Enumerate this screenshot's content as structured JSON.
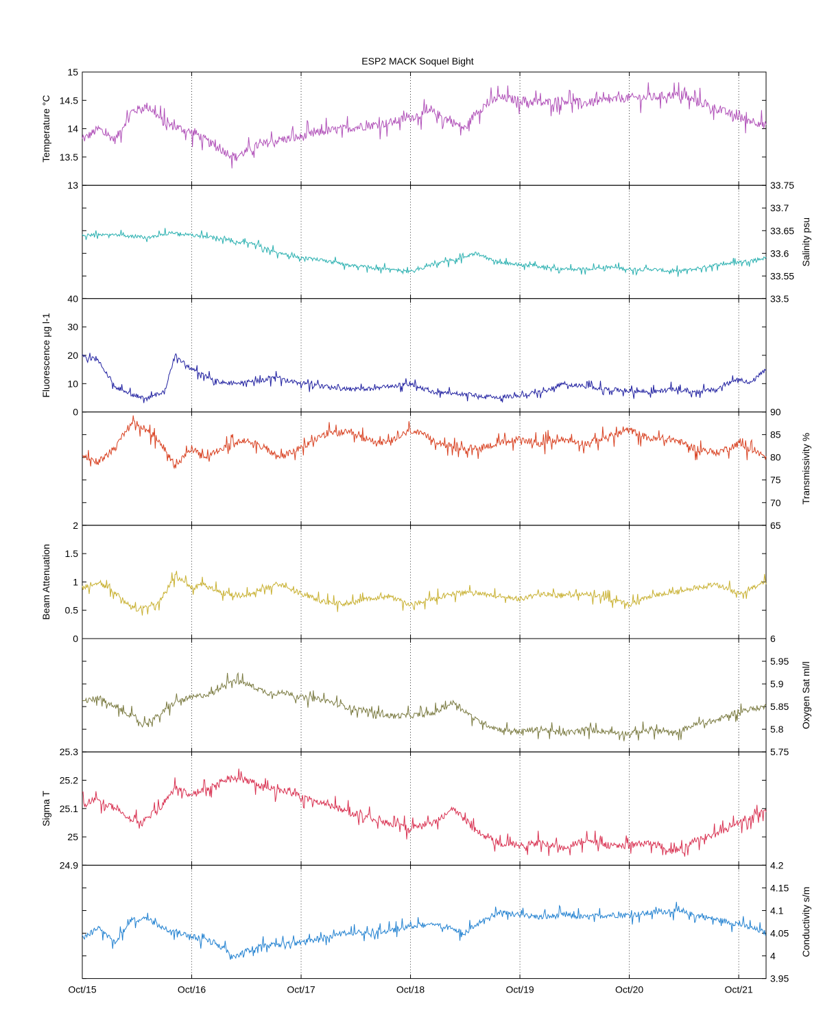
{
  "title": "ESP2 MACK  Soquel Bight",
  "x_axis": {
    "ticks": [
      "Oct/15",
      "Oct/16",
      "Oct/17",
      "Oct/18",
      "Oct/19",
      "Oct/20",
      "Oct/21"
    ],
    "range_days": [
      0,
      6.25
    ]
  },
  "chart_data": [
    {
      "type": "line",
      "ylabel": "Temperature °C",
      "axis_side": "left",
      "color": "#b050b8",
      "ylim": [
        13,
        15
      ],
      "yticks": [
        13,
        13.5,
        14,
        14.5,
        15
      ],
      "series": [
        {
          "x_days": [
            0,
            0.15,
            0.3,
            0.45,
            0.6,
            0.75,
            0.9,
            1.05,
            1.2,
            1.4,
            1.6,
            1.8,
            2.0,
            2.2,
            2.4,
            2.6,
            2.8,
            3.0,
            3.2,
            3.4,
            3.5,
            3.6,
            3.8,
            4.0,
            4.2,
            4.4,
            4.6,
            4.8,
            5.0,
            5.2,
            5.4,
            5.6,
            5.8,
            6.0,
            6.2,
            6.25
          ],
          "values": [
            13.8,
            14.0,
            13.8,
            14.3,
            14.4,
            14.1,
            14.0,
            13.9,
            13.7,
            13.5,
            13.7,
            13.8,
            13.85,
            13.95,
            14.0,
            14.05,
            14.1,
            14.2,
            14.3,
            14.1,
            14.0,
            14.3,
            14.55,
            14.5,
            14.45,
            14.5,
            14.45,
            14.5,
            14.55,
            14.55,
            14.6,
            14.5,
            14.35,
            14.2,
            14.1,
            14.05
          ],
          "noise": 0.25
        }
      ]
    },
    {
      "type": "line",
      "ylabel": "Salinity psu",
      "axis_side": "right",
      "color": "#2ab0b0",
      "ylim": [
        33.5,
        33.75
      ],
      "yticks": [
        33.5,
        33.55,
        33.6,
        33.65,
        33.7,
        33.75
      ],
      "series": [
        {
          "x_days": [
            0,
            0.3,
            0.6,
            0.8,
            1.0,
            1.2,
            1.4,
            1.6,
            1.8,
            2.0,
            2.2,
            2.4,
            2.6,
            2.8,
            3.0,
            3.2,
            3.4,
            3.6,
            3.8,
            4.0,
            4.2,
            4.4,
            4.6,
            4.8,
            5.0,
            5.2,
            5.4,
            5.6,
            5.8,
            6.0,
            6.25
          ],
          "values": [
            33.64,
            33.64,
            33.635,
            33.645,
            33.64,
            33.635,
            33.625,
            33.62,
            33.6,
            33.59,
            33.585,
            33.575,
            33.57,
            33.565,
            33.56,
            33.575,
            33.585,
            33.6,
            33.58,
            33.575,
            33.57,
            33.565,
            33.565,
            33.57,
            33.565,
            33.565,
            33.56,
            33.565,
            33.575,
            33.58,
            33.59
          ],
          "noise": 0.012
        }
      ]
    },
    {
      "type": "line",
      "ylabel": "Fluorescence µg l-1",
      "axis_side": "left",
      "color": "#2020a0",
      "ylim": [
        0,
        40
      ],
      "yticks": [
        0,
        10,
        20,
        30,
        40
      ],
      "series": [
        {
          "x_days": [
            0,
            0.15,
            0.3,
            0.45,
            0.6,
            0.75,
            0.85,
            1.0,
            1.2,
            1.4,
            1.6,
            1.8,
            2.0,
            2.2,
            2.4,
            2.6,
            2.8,
            3.0,
            3.2,
            3.4,
            3.6,
            3.8,
            4.0,
            4.2,
            4.4,
            4.6,
            4.8,
            5.0,
            5.2,
            5.4,
            5.6,
            5.8,
            6.0,
            6.1,
            6.25
          ],
          "values": [
            20,
            18,
            9,
            6,
            5,
            7,
            20,
            15,
            11,
            10,
            11,
            12,
            10,
            9,
            8,
            8,
            9,
            10,
            7,
            6.5,
            6,
            5,
            6,
            7,
            10,
            9,
            8,
            7.5,
            7,
            8,
            7,
            8,
            12,
            10,
            15
          ],
          "noise": 2.5
        }
      ]
    },
    {
      "type": "line",
      "ylabel": "Transmissivity %",
      "axis_side": "right",
      "color": "#d84020",
      "ylim": [
        65,
        90
      ],
      "yticks": [
        65,
        70,
        75,
        80,
        85,
        90
      ],
      "series": [
        {
          "x_days": [
            0,
            0.15,
            0.3,
            0.45,
            0.5,
            0.7,
            0.85,
            1.0,
            1.1,
            1.3,
            1.5,
            1.6,
            1.8,
            2.0,
            2.2,
            2.4,
            2.6,
            2.8,
            3.0,
            3.2,
            3.4,
            3.6,
            3.8,
            4.0,
            4.2,
            4.4,
            4.6,
            4.8,
            5.0,
            5.2,
            5.4,
            5.6,
            5.8,
            6.0,
            6.25
          ],
          "values": [
            80,
            79,
            82,
            88,
            87.5,
            84,
            78,
            82,
            80,
            82,
            84,
            83,
            80,
            82,
            85,
            85.5,
            84,
            83,
            86,
            84,
            82,
            82,
            83,
            84,
            83,
            84,
            83,
            84.5,
            86,
            84,
            84,
            82,
            81,
            83,
            80
          ],
          "noise": 2.5
        }
      ]
    },
    {
      "type": "line",
      "ylabel": "Beam Attenuation",
      "axis_side": "left",
      "color": "#c8b030",
      "ylim": [
        0,
        2
      ],
      "yticks": [
        0,
        0.5,
        1,
        1.5,
        2
      ],
      "series": [
        {
          "x_days": [
            0,
            0.15,
            0.3,
            0.45,
            0.5,
            0.7,
            0.85,
            1.0,
            1.1,
            1.3,
            1.5,
            1.6,
            1.8,
            2.0,
            2.2,
            2.4,
            2.6,
            2.8,
            3.0,
            3.2,
            3.4,
            3.6,
            3.8,
            4.0,
            4.2,
            4.4,
            4.6,
            4.8,
            5.0,
            5.2,
            5.4,
            5.6,
            5.8,
            6.0,
            6.25
          ],
          "values": [
            0.9,
            1.0,
            0.8,
            0.55,
            0.52,
            0.65,
            1.1,
            0.9,
            0.95,
            0.8,
            0.75,
            0.85,
            0.95,
            0.8,
            0.65,
            0.62,
            0.7,
            0.75,
            0.6,
            0.7,
            0.8,
            0.8,
            0.75,
            0.7,
            0.8,
            0.75,
            0.8,
            0.7,
            0.6,
            0.75,
            0.8,
            0.9,
            0.95,
            0.8,
            1.0
          ],
          "noise": 0.15
        }
      ]
    },
    {
      "type": "line",
      "ylabel": "Oxygen Sat ml/l",
      "axis_side": "right",
      "color": "#7a7a40",
      "ylim": [
        5.75,
        6
      ],
      "yticks": [
        5.75,
        5.8,
        5.85,
        5.9,
        5.95,
        6
      ],
      "series": [
        {
          "x_days": [
            0,
            0.15,
            0.3,
            0.45,
            0.55,
            0.7,
            0.85,
            1.0,
            1.2,
            1.35,
            1.5,
            1.7,
            1.9,
            2.0,
            2.2,
            2.4,
            2.6,
            2.8,
            3.0,
            3.2,
            3.4,
            3.6,
            3.8,
            4.0,
            4.2,
            4.4,
            4.6,
            4.8,
            5.0,
            5.2,
            5.4,
            5.6,
            5.8,
            6.0,
            6.25
          ],
          "values": [
            5.86,
            5.87,
            5.85,
            5.83,
            5.81,
            5.83,
            5.86,
            5.87,
            5.88,
            5.91,
            5.9,
            5.88,
            5.88,
            5.87,
            5.865,
            5.85,
            5.84,
            5.83,
            5.83,
            5.835,
            5.86,
            5.82,
            5.8,
            5.795,
            5.8,
            5.79,
            5.8,
            5.795,
            5.79,
            5.8,
            5.79,
            5.81,
            5.82,
            5.84,
            5.85
          ],
          "noise": 0.02
        }
      ]
    },
    {
      "type": "line",
      "ylabel": "Sigma T",
      "axis_side": "left",
      "color": "#d83050",
      "ylim": [
        24.9,
        25.3
      ],
      "yticks": [
        24.9,
        25,
        25.1,
        25.2,
        25.3
      ],
      "series": [
        {
          "x_days": [
            0,
            0.15,
            0.3,
            0.45,
            0.55,
            0.7,
            0.85,
            1.0,
            1.2,
            1.35,
            1.5,
            1.7,
            1.9,
            2.0,
            2.2,
            2.4,
            2.6,
            2.8,
            3.0,
            3.2,
            3.4,
            3.6,
            3.8,
            4.0,
            4.2,
            4.4,
            4.6,
            4.8,
            5.0,
            5.2,
            5.4,
            5.6,
            5.8,
            6.0,
            6.25
          ],
          "values": [
            25.12,
            25.13,
            25.1,
            25.06,
            25.05,
            25.1,
            25.17,
            25.15,
            25.18,
            25.21,
            25.2,
            25.17,
            25.16,
            25.14,
            25.12,
            25.09,
            25.07,
            25.05,
            25.03,
            25.05,
            25.1,
            25.02,
            24.98,
            24.97,
            24.98,
            24.96,
            24.99,
            24.97,
            24.97,
            24.98,
            24.95,
            24.99,
            25.01,
            25.05,
            25.09
          ],
          "noise": 0.04
        }
      ]
    },
    {
      "type": "line",
      "ylabel": "Conductivity s/m",
      "axis_side": "right",
      "color": "#2080d0",
      "ylim": [
        3.95,
        4.2
      ],
      "yticks": [
        3.95,
        4,
        4.05,
        4.1,
        4.15,
        4.2
      ],
      "series": [
        {
          "x_days": [
            0,
            0.15,
            0.3,
            0.45,
            0.6,
            0.75,
            0.9,
            1.05,
            1.2,
            1.4,
            1.6,
            1.8,
            2.0,
            2.2,
            2.4,
            2.6,
            2.8,
            3.0,
            3.2,
            3.4,
            3.5,
            3.6,
            3.8,
            4.0,
            4.2,
            4.4,
            4.6,
            4.8,
            5.0,
            5.2,
            5.4,
            5.6,
            5.8,
            6.0,
            6.2,
            6.25
          ],
          "values": [
            4.04,
            4.06,
            4.03,
            4.08,
            4.08,
            4.06,
            4.05,
            4.04,
            4.03,
            4.0,
            4.02,
            4.025,
            4.03,
            4.04,
            4.05,
            4.05,
            4.055,
            4.065,
            4.07,
            4.06,
            4.05,
            4.07,
            4.095,
            4.09,
            4.085,
            4.09,
            4.085,
            4.09,
            4.09,
            4.095,
            4.1,
            4.09,
            4.08,
            4.07,
            4.055,
            4.05
          ],
          "noise": 0.02
        }
      ]
    }
  ]
}
